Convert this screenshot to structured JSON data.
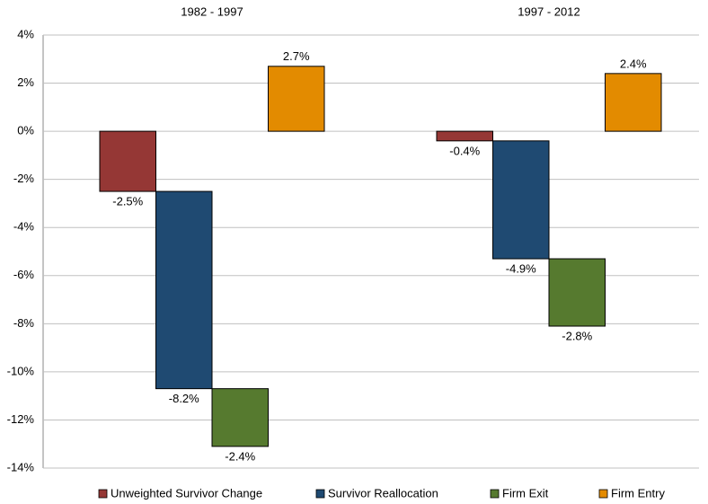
{
  "chart_data": {
    "type": "waterfall",
    "categories": [
      "1982 - 1997",
      "1997 - 2012"
    ],
    "series": [
      {
        "name": "Unweighted Survivor Change",
        "color": "#953735",
        "values": [
          -2.5,
          -0.4
        ],
        "value_labels": [
          "-2.5%",
          "-0.4%"
        ]
      },
      {
        "name": "Survivor Reallocation",
        "color": "#1F4A72",
        "values": [
          -8.2,
          -4.9
        ],
        "value_labels": [
          "-8.2%",
          "-4.9%"
        ]
      },
      {
        "name": "Firm Exit",
        "color": "#567A2F",
        "values": [
          -2.4,
          -2.8
        ],
        "value_labels": [
          "-2.4%",
          "-2.8%"
        ]
      },
      {
        "name": "Firm Entry",
        "color": "#E38B00",
        "values": [
          2.7,
          2.4
        ],
        "value_labels": [
          "2.7%",
          "2.4%"
        ]
      }
    ],
    "ylim": [
      -14,
      4
    ],
    "yticks": [
      {
        "value": -14,
        "label": "-14%"
      },
      {
        "value": -12,
        "label": "-12%"
      },
      {
        "value": -10,
        "label": "-10%"
      },
      {
        "value": -8,
        "label": "-8%"
      },
      {
        "value": -6,
        "label": "-6%"
      },
      {
        "value": -4,
        "label": "-4%"
      },
      {
        "value": -2,
        "label": "-2%"
      },
      {
        "value": 0,
        "label": "0%"
      },
      {
        "value": 2,
        "label": "2%"
      },
      {
        "value": 4,
        "label": "4%"
      }
    ],
    "grid": true,
    "legend": "bottom"
  }
}
